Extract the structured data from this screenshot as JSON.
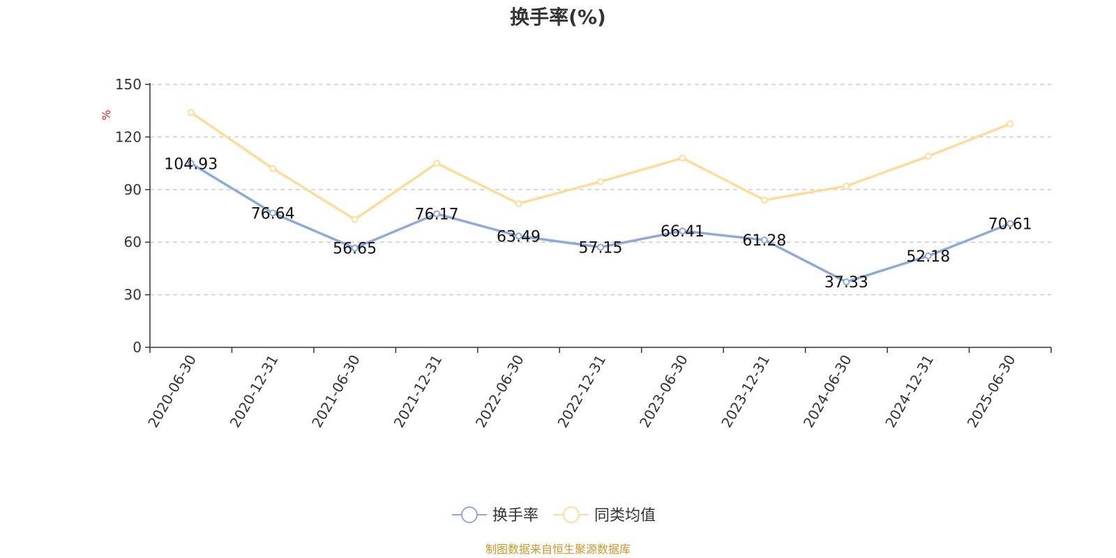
{
  "chart_data": {
    "type": "line",
    "title": "换手率(%)",
    "ylabel": "%",
    "xlabel": "",
    "ylim": [
      0,
      150
    ],
    "yticks": [
      0,
      30,
      60,
      90,
      120,
      150
    ],
    "grid": true,
    "legend_position": "bottom-center",
    "categories": [
      "2020-06-30",
      "2020-12-31",
      "2021-06-30",
      "2021-12-31",
      "2022-06-30",
      "2022-12-31",
      "2023-06-30",
      "2023-12-31",
      "2024-06-30",
      "2024-12-31",
      "2025-06-30"
    ],
    "series": [
      {
        "name": "换手率",
        "color": "#8eaad8",
        "show_labels": true,
        "values": [
          104.93,
          76.64,
          56.65,
          76.17,
          63.49,
          57.15,
          66.41,
          61.28,
          37.33,
          52.18,
          70.61
        ]
      },
      {
        "name": "同类均值",
        "color": "#fddc9a",
        "show_labels": false,
        "values": [
          134,
          102,
          73,
          105,
          82,
          94.5,
          108,
          84,
          92,
          109,
          127.5
        ]
      }
    ]
  },
  "source_note": "制图数据来自恒生聚源数据库"
}
